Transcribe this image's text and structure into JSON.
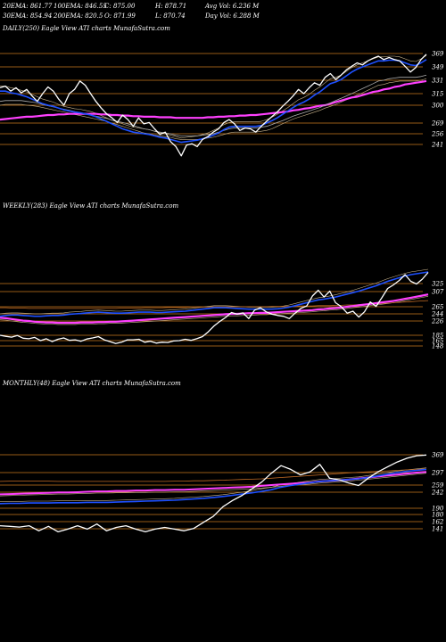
{
  "header": {
    "row1": [
      "20EMA: 861.77",
      "100EMA: 846.55",
      "C: 875.00",
      "H: 878.71",
      "Avg Vol: 6.236  M"
    ],
    "row2": [
      "30EMA: 854.94",
      "200EMA: 820.5",
      "O: 871.99",
      "L: 870.74",
      "Day Vol: 6.288  M"
    ]
  },
  "colors": {
    "background": "#000000",
    "price": "#ffffff",
    "blue_ema": "#1e50ff",
    "magenta_ema": "#ff40ff",
    "grid": "#c8781e",
    "ema_thin": "#c9b48c",
    "ema_orange": "#c06a24",
    "ema_grey": "#aaaaaa"
  },
  "chart_data": [
    {
      "type": "line",
      "label": "DAILY(250) Eagle   View  ATI charts MunafaSutra.com",
      "levels": [
        "369",
        "349",
        "331",
        "315",
        "300",
        "269",
        "256",
        "241"
      ],
      "series": [
        {
          "values": [
            322,
            324,
            318,
            322,
            316,
            320,
            312,
            305,
            315,
            323,
            318,
            308,
            300,
            315,
            320,
            330,
            325,
            315,
            305,
            295,
            285,
            278,
            270,
            283,
            275,
            265,
            278,
            268,
            270,
            262,
            255,
            258,
            245,
            238,
            225,
            240,
            242,
            238,
            248,
            252,
            258,
            262,
            270,
            275,
            268,
            260,
            263,
            262,
            258,
            265,
            272,
            280,
            288,
            298,
            305,
            312,
            320,
            315,
            322,
            328,
            325,
            335,
            340,
            332,
            338,
            345,
            350,
            355,
            352,
            358,
            362,
            365,
            360,
            363,
            360,
            358,
            350,
            342,
            348,
            360,
            368
          ]
        },
        {
          "values": [
            318,
            318,
            316,
            315,
            313,
            311,
            308,
            305,
            302,
            300,
            298,
            295,
            292,
            290,
            288,
            287,
            285,
            283,
            280,
            276,
            272,
            268,
            265,
            262,
            260,
            258,
            257,
            256,
            255,
            253,
            251,
            250,
            248,
            246,
            244,
            245,
            246,
            247,
            249,
            251,
            254,
            257,
            261,
            264,
            265,
            265,
            265,
            265,
            265,
            266,
            269,
            273,
            278,
            284,
            290,
            296,
            301,
            304,
            308,
            313,
            317,
            322,
            327,
            329,
            332,
            337,
            342,
            346,
            349,
            352,
            355,
            358,
            358,
            359,
            359,
            358,
            355,
            352,
            351,
            355,
            360
          ]
        },
        {
          "values": [
            305,
            306,
            306,
            306,
            306,
            305,
            304,
            303,
            301,
            299,
            297,
            295,
            293,
            291,
            289,
            287,
            285,
            283,
            281,
            279,
            277,
            274,
            272,
            270,
            268,
            266,
            264,
            262,
            261,
            259,
            258,
            257,
            256,
            254,
            253,
            253,
            253,
            253,
            254,
            255,
            256,
            258,
            260,
            262,
            263,
            263,
            263,
            263,
            263,
            264,
            265,
            267,
            270,
            273,
            277,
            281,
            284,
            287,
            290,
            293,
            296,
            300,
            303,
            306,
            309,
            312,
            315,
            318,
            321,
            324,
            327,
            330,
            331,
            333,
            334,
            335,
            335,
            335,
            335,
            336,
            338
          ]
        },
        {
          "values": [
            275,
            276,
            277,
            278,
            279,
            280,
            280,
            281,
            282,
            283,
            283,
            284,
            284,
            285,
            285,
            285,
            285,
            285,
            285,
            284,
            284,
            283,
            283,
            282,
            282,
            281,
            281,
            280,
            280,
            280,
            279,
            279,
            279,
            278,
            278,
            278,
            278,
            278,
            278,
            279,
            279,
            280,
            280,
            281,
            281,
            282,
            282,
            283,
            283,
            284,
            285,
            286,
            287,
            288,
            289,
            291,
            292,
            294,
            295,
            297,
            299,
            300,
            302,
            304,
            306,
            308,
            310,
            311,
            313,
            315,
            317,
            318,
            320,
            321,
            323,
            324,
            326,
            327,
            328,
            329,
            330
          ]
        }
      ]
    },
    {
      "type": "line",
      "label": "WEEKLY(283) Eagle   View  ATI charts MunafaSutra.com",
      "levels": [
        "325",
        "307",
        "265",
        "244",
        "226",
        "185",
        "165",
        "148"
      ],
      "series": [
        {
          "values": [
            185,
            181,
            178,
            184,
            174,
            172,
            177,
            165,
            172,
            162,
            170,
            175,
            166,
            168,
            163,
            171,
            175,
            180,
            168,
            162,
            156,
            160,
            168,
            168,
            170,
            160,
            163,
            157,
            160,
            159,
            164,
            165,
            170,
            166,
            172,
            180,
            195,
            212,
            225,
            235,
            248,
            243,
            247,
            232,
            255,
            262,
            250,
            243,
            240,
            238,
            232,
            246,
            260,
            267,
            295,
            310,
            292,
            308,
            276,
            265,
            246,
            252,
            236,
            250,
            278,
            266,
            290,
            314,
            322,
            332,
            345,
            330,
            324,
            335,
            350
          ]
        },
        {
          "values": [
            238,
            240,
            241,
            241,
            240,
            239,
            238,
            238,
            239,
            240,
            240,
            241,
            243,
            244,
            245,
            247,
            248,
            249,
            248,
            247,
            246,
            246,
            247,
            248,
            249,
            249,
            249,
            248,
            248,
            249,
            250,
            251,
            252,
            254,
            256,
            258,
            260,
            262,
            262,
            262,
            261,
            260,
            259,
            258,
            258,
            258,
            258,
            258,
            259,
            261,
            264,
            268,
            272,
            276,
            280,
            284,
            286,
            289,
            292,
            296,
            300,
            304,
            308,
            312,
            316,
            320,
            325,
            330,
            334,
            338,
            342,
            345,
            347,
            349,
            351
          ]
        },
        {
          "values": [
            234,
            233,
            231,
            229,
            227,
            226,
            224,
            223,
            222,
            222,
            221,
            221,
            221,
            221,
            222,
            222,
            222,
            223,
            223,
            224,
            224,
            225,
            226,
            227,
            228,
            229,
            230,
            231,
            232,
            233,
            234,
            235,
            236,
            237,
            238,
            239,
            240,
            241,
            242,
            243,
            244,
            244,
            245,
            246,
            246,
            247,
            247,
            248,
            249,
            250,
            251,
            252,
            253,
            254,
            255,
            257,
            258,
            260,
            261,
            263,
            265,
            267,
            269,
            271,
            273,
            275,
            277,
            279,
            281,
            284,
            287,
            290,
            293,
            296,
            299
          ]
        },
        {
          "values": [
            262,
            262,
            261,
            261,
            261,
            260,
            260,
            260,
            260,
            260,
            260,
            260,
            260,
            260,
            260,
            260,
            260,
            260,
            260,
            260,
            260,
            261,
            261,
            261,
            261,
            262,
            262,
            262,
            262,
            263,
            263,
            263,
            263,
            264,
            264,
            264,
            264,
            265,
            265,
            265,
            265,
            265,
            265,
            265,
            265,
            265,
            265,
            266,
            266,
            266,
            266,
            266,
            267,
            267,
            267,
            268,
            268,
            268,
            269,
            269,
            270,
            270,
            271,
            272,
            272,
            273,
            274,
            275,
            276,
            277,
            278,
            279,
            280,
            281,
            282
          ]
        }
      ]
    },
    {
      "type": "line",
      "label": "MONTHLY(48) Eagle   View  ATI charts MunafaSutra.com",
      "levels": [
        "369",
        "297",
        "259",
        "242",
        "190",
        "180",
        "162",
        "141"
      ],
      "series": [
        {
          "values": [
            150,
            148,
            146,
            150,
            135,
            148,
            132,
            140,
            150,
            140,
            155,
            135,
            145,
            150,
            140,
            132,
            140,
            145,
            140,
            135,
            142,
            160,
            175,
            195,
            215,
            232,
            250,
            268,
            295,
            325,
            310,
            290,
            300,
            330,
            280,
            275,
            265,
            258,
            280,
            300,
            320,
            340,
            355,
            365,
            368
          ]
        },
        {
          "values": [
            205,
            206,
            206,
            207,
            207,
            207,
            208,
            208,
            208,
            209,
            209,
            209,
            210,
            211,
            212,
            213,
            214,
            215,
            216,
            218,
            220,
            222,
            225,
            228,
            232,
            236,
            240,
            244,
            248,
            254,
            258,
            262,
            266,
            270,
            272,
            274,
            276,
            278,
            282,
            287,
            292,
            297,
            302,
            306,
            310
          ]
        },
        {
          "values": [
            235,
            236,
            237,
            238,
            239,
            240,
            241,
            241,
            242,
            243,
            244,
            244,
            245,
            245,
            246,
            246,
            247,
            247,
            248,
            248,
            249,
            250,
            251,
            252,
            253,
            254,
            255,
            257,
            259,
            261,
            263,
            265,
            267,
            270,
            272,
            274,
            276,
            279,
            282,
            285,
            288,
            291,
            294,
            297,
            300
          ]
        },
        {
          "values": [
            270,
            271,
            271,
            271,
            271,
            271,
            270,
            270,
            270,
            270,
            270,
            270,
            270,
            270,
            270,
            270,
            270,
            270,
            271,
            271,
            272,
            272,
            273,
            274,
            275,
            276,
            277,
            278,
            280,
            282,
            284,
            286,
            288,
            290,
            292,
            294,
            296,
            298,
            300,
            302,
            304,
            306,
            308,
            310,
            312
          ]
        }
      ]
    }
  ]
}
